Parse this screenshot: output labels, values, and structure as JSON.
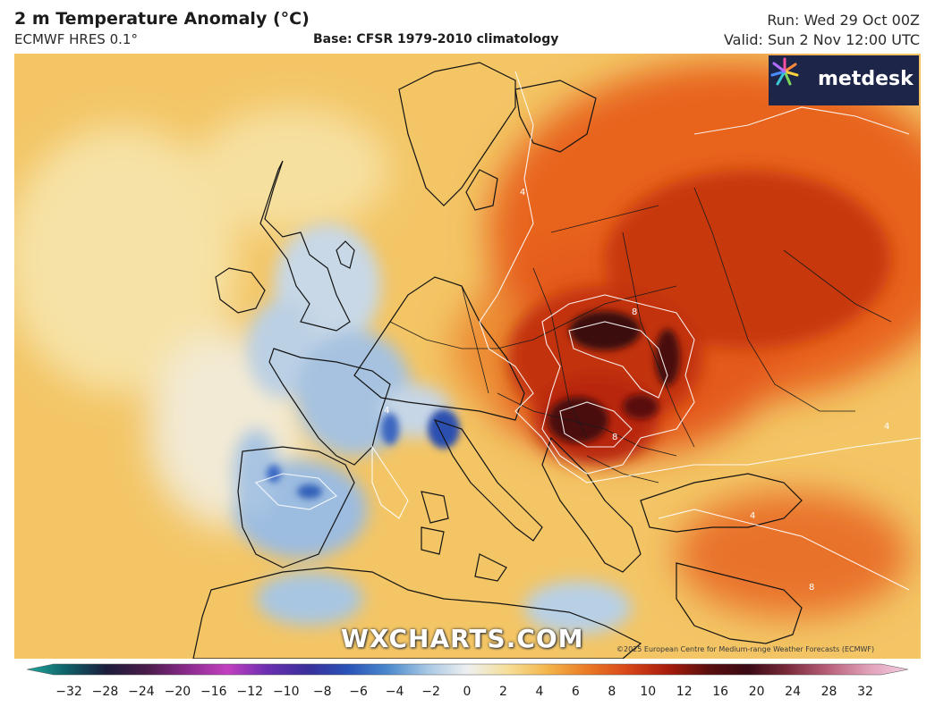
{
  "header": {
    "title": "2 m Temperature Anomaly (°C)",
    "model": "ECMWF HRES 0.1°",
    "base": "Base: CFSR 1979-2010 climatology",
    "run": "Run: Wed 29 Oct 00Z",
    "valid": "Valid: Sun 2 Nov 12:00 UTC"
  },
  "logo": {
    "text": "metdesk",
    "icon": "metdesk-star-icon"
  },
  "watermark": "WXCHARTS.COM",
  "copyright": "©2025 European Centre for Medium-range Weather Forecasts (ECMWF)",
  "contour_labels": [
    "4",
    "8"
  ],
  "colors": {
    "cold_strong": "#1b3f9e",
    "cold": "#8eb6de",
    "neutral": "#f4ecd2",
    "warm": "#f3c565",
    "hot": "#e8631c",
    "very_hot": "#c02a08",
    "extreme": "#3b0c0c"
  },
  "colorbar": {
    "ticks": [
      "−32",
      "−28",
      "−24",
      "−20",
      "−16",
      "−12",
      "−10",
      "−8",
      "−6",
      "−4",
      "−2",
      "0",
      "2",
      "4",
      "6",
      "8",
      "10",
      "12",
      "16",
      "20",
      "24",
      "28",
      "32"
    ],
    "stops": [
      "#1ea89a",
      "#0f5f68",
      "#1c1c3a",
      "#4a1c4a",
      "#8a2a8c",
      "#c23fbf",
      "#6a2fb0",
      "#3a2f9a",
      "#2a52b8",
      "#4a88cc",
      "#a8c8e4",
      "#eef0f0",
      "#f6df9a",
      "#f3b54a",
      "#ea7a24",
      "#d8461a",
      "#a81c0c",
      "#5a0e0e",
      "#3a0a14",
      "#7a2a3a",
      "#b8607a",
      "#e0a0b8",
      "#f4cde0"
    ]
  }
}
